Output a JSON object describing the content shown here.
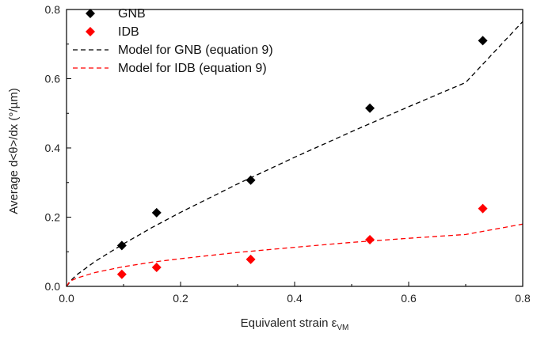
{
  "chart_data": {
    "type": "scatter",
    "xlabel_main": "Equivalent strain ε",
    "xlabel_sub": "VM",
    "ylabel": "Average d<θ>/dx (°/µm)",
    "xlim": [
      0,
      0.8
    ],
    "ylim": [
      0,
      0.8
    ],
    "x_ticks": [
      "0.0",
      "0.2",
      "0.4",
      "0.6",
      "0.8"
    ],
    "y_ticks": [
      "0.0",
      "0.2",
      "0.4",
      "0.6",
      "0.8"
    ],
    "grid": false,
    "legend_position": "top-left",
    "series": [
      {
        "name": "GNB",
        "kind": "points",
        "marker": "diamond",
        "color": "#000000",
        "x": [
          0.097,
          0.158,
          0.323,
          0.532,
          0.73
        ],
        "y": [
          0.118,
          0.213,
          0.307,
          0.515,
          0.71
        ]
      },
      {
        "name": "IDB",
        "kind": "points",
        "marker": "diamond",
        "color": "#ff0000",
        "x": [
          0.097,
          0.158,
          0.323,
          0.532,
          0.73
        ],
        "y": [
          0.035,
          0.055,
          0.078,
          0.135,
          0.225
        ]
      },
      {
        "name": "Model for GNB (equation 9)",
        "kind": "dashed-line",
        "color": "#000000",
        "x": [
          0.0,
          0.01,
          0.02,
          0.05,
          0.1,
          0.15,
          0.2,
          0.3,
          0.4,
          0.5,
          0.6,
          0.7,
          0.8
        ],
        "y": [
          0.0,
          0.021,
          0.036,
          0.072,
          0.123,
          0.17,
          0.214,
          0.296,
          0.373,
          0.447,
          0.519,
          0.589,
          0.765
        ]
      },
      {
        "name": "Model for IDB (equation 9)",
        "kind": "dashed-line",
        "color": "#ff0000",
        "x": [
          0.0,
          0.005,
          0.01,
          0.02,
          0.05,
          0.1,
          0.15,
          0.2,
          0.3,
          0.4,
          0.5,
          0.6,
          0.7,
          0.8
        ],
        "y": [
          0.0,
          0.013,
          0.018,
          0.025,
          0.04,
          0.057,
          0.07,
          0.08,
          0.098,
          0.113,
          0.127,
          0.139,
          0.15,
          0.18
        ]
      }
    ]
  }
}
